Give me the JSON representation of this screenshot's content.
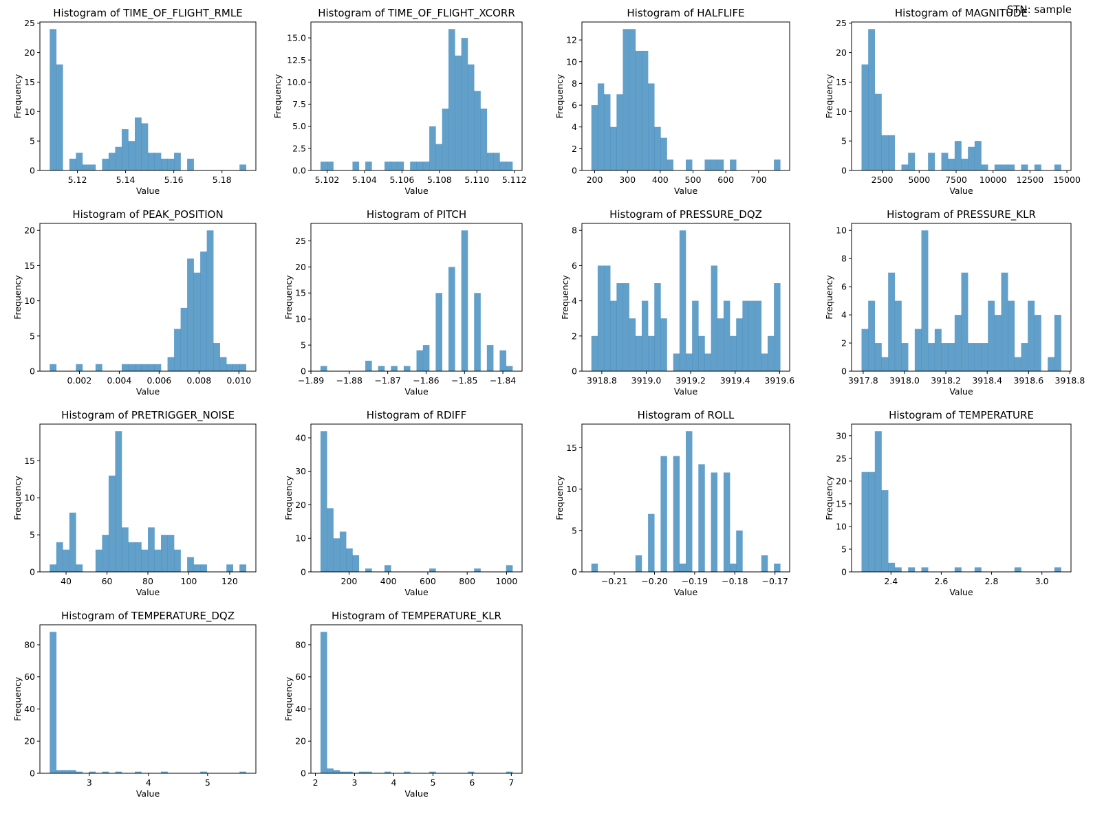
{
  "suptitle": "STN: sample",
  "bar_color": "#1f77b4",
  "bar_alpha": 0.7,
  "chart_data": [
    {
      "type": "bar",
      "title": "Histogram of TIME_OF_FLIGHT_RMLE",
      "xlabel": "Value",
      "ylabel": "Frequency",
      "bins": 30,
      "range": [
        5.1085,
        5.19
      ],
      "values": [
        24,
        18,
        0,
        2,
        3,
        1,
        1,
        0,
        2,
        3,
        4,
        7,
        5,
        9,
        8,
        3,
        3,
        2,
        2,
        3,
        0,
        2,
        0,
        0,
        0,
        0,
        0,
        0,
        0,
        1
      ],
      "xticks": [
        5.12,
        5.14,
        5.16,
        5.18
      ],
      "xtick_labels": [
        "5.12",
        "5.14",
        "5.16",
        "5.18"
      ],
      "yticks": [
        0,
        5,
        10,
        15,
        20,
        25
      ],
      "ytick_labels": [
        "0",
        "5",
        "10",
        "15",
        "20",
        "25"
      ],
      "ylim": [
        0,
        25.2
      ]
    },
    {
      "type": "bar",
      "title": "Histogram of TIME_OF_FLIGHT_XCORR",
      "xlabel": "Value",
      "ylabel": "Frequency",
      "bins": 30,
      "range": [
        5.10165,
        5.1119
      ],
      "values": [
        1,
        1,
        0,
        0,
        0,
        1,
        0,
        1,
        0,
        0,
        1,
        1,
        1,
        0,
        1,
        1,
        1,
        5,
        3,
        7,
        16,
        13,
        15,
        12,
        9,
        7,
        2,
        2,
        1,
        1
      ],
      "xticks": [
        5.102,
        5.104,
        5.106,
        5.108,
        5.11,
        5.112
      ],
      "xtick_labels": [
        "5.102",
        "5.104",
        "5.106",
        "5.108",
        "5.110",
        "5.112"
      ],
      "yticks": [
        0,
        2.5,
        5,
        7.5,
        10,
        12.5,
        15
      ],
      "ytick_labels": [
        "0.0",
        "2.5",
        "5.0",
        "7.5",
        "10.0",
        "12.5",
        "15.0"
      ],
      "ylim": [
        0,
        16.8
      ]
    },
    {
      "type": "bar",
      "title": "Histogram of HALFLIFE",
      "xlabel": "Value",
      "ylabel": "Frequency",
      "bins": 30,
      "range": [
        190,
        766
      ],
      "values": [
        6,
        8,
        7,
        4,
        7,
        13,
        13,
        11,
        11,
        8,
        4,
        3,
        1,
        0,
        0,
        1,
        0,
        0,
        1,
        1,
        1,
        0,
        1,
        0,
        0,
        0,
        0,
        0,
        0,
        1
      ],
      "xticks": [
        200,
        300,
        400,
        500,
        600,
        700
      ],
      "xtick_labels": [
        "200",
        "300",
        "400",
        "500",
        "600",
        "700"
      ],
      "yticks": [
        0,
        2,
        4,
        6,
        8,
        10,
        12
      ],
      "ytick_labels": [
        "0",
        "2",
        "4",
        "6",
        "8",
        "10",
        "12"
      ],
      "ylim": [
        0,
        13.65
      ]
    },
    {
      "type": "bar",
      "title": "Histogram of MAGNITUDE",
      "xlabel": "Value",
      "ylabel": "Frequency",
      "bins": 30,
      "range": [
        1100,
        14600
      ],
      "values": [
        18,
        24,
        13,
        6,
        6,
        0,
        1,
        3,
        0,
        0,
        3,
        0,
        3,
        2,
        5,
        2,
        4,
        5,
        1,
        0,
        1,
        1,
        1,
        0,
        1,
        0,
        1,
        0,
        0,
        1
      ],
      "xticks": [
        2500,
        5000,
        7500,
        10000,
        12500,
        15000
      ],
      "xtick_labels": [
        "2500",
        "5000",
        "7500",
        "10000",
        "12500",
        "15000"
      ],
      "yticks": [
        0,
        5,
        10,
        15,
        20,
        25
      ],
      "ytick_labels": [
        "0",
        "5",
        "10",
        "15",
        "20",
        "25"
      ],
      "ylim": [
        0,
        25.2
      ]
    },
    {
      "type": "bar",
      "title": "Histogram of PEAK_POSITION",
      "xlabel": "Value",
      "ylabel": "Frequency",
      "bins": 30,
      "range": [
        0.00051,
        0.01036
      ],
      "values": [
        1,
        0,
        0,
        0,
        1,
        0,
        0,
        1,
        0,
        0,
        0,
        1,
        1,
        1,
        1,
        1,
        1,
        0,
        2,
        6,
        9,
        16,
        14,
        17,
        20,
        4,
        2,
        1,
        1,
        1
      ],
      "xticks": [
        0.002,
        0.004,
        0.006,
        0.008,
        0.01
      ],
      "xtick_labels": [
        "0.002",
        "0.004",
        "0.006",
        "0.008",
        "0.010"
      ],
      "yticks": [
        0,
        5,
        10,
        15,
        20
      ],
      "ytick_labels": [
        "0",
        "5",
        "10",
        "15",
        "20"
      ],
      "ylim": [
        0,
        21
      ]
    },
    {
      "type": "bar",
      "title": "Histogram of PITCH",
      "xlabel": "Value",
      "ylabel": "Frequency",
      "bins": 30,
      "range": [
        -1.8875,
        -1.8375
      ],
      "values": [
        1,
        0,
        0,
        0,
        0,
        0,
        0,
        2,
        0,
        1,
        0,
        1,
        0,
        1,
        0,
        4,
        5,
        0,
        15,
        0,
        20,
        0,
        27,
        0,
        15,
        0,
        5,
        0,
        4,
        1
      ],
      "xticks": [
        -1.89,
        -1.88,
        -1.87,
        -1.86,
        -1.85,
        -1.84
      ],
      "xtick_labels": [
        "−1.89",
        "−1.88",
        "−1.87",
        "−1.86",
        "−1.85",
        "−1.84"
      ],
      "yticks": [
        0,
        5,
        10,
        15,
        20,
        25
      ],
      "ytick_labels": [
        "0",
        "5",
        "10",
        "15",
        "20",
        "25"
      ],
      "ylim": [
        0,
        28.35
      ]
    },
    {
      "type": "bar",
      "title": "Histogram of PRESSURE_DQZ",
      "xlabel": "Value",
      "ylabel": "Frequency",
      "bins": 30,
      "range": [
        3918.753,
        3919.603
      ],
      "values": [
        2,
        6,
        6,
        4,
        5,
        5,
        3,
        2,
        4,
        2,
        5,
        3,
        0,
        1,
        8,
        1,
        4,
        2,
        1,
        6,
        3,
        4,
        2,
        3,
        4,
        4,
        4,
        1,
        2,
        5
      ],
      "xticks": [
        3918.8,
        3919.0,
        3919.2,
        3919.4,
        3919.6
      ],
      "xtick_labels": [
        "3918.8",
        "3919.0",
        "3919.2",
        "3919.4",
        "3919.6"
      ],
      "yticks": [
        0,
        2,
        4,
        6,
        8
      ],
      "ytick_labels": [
        "0",
        "2",
        "4",
        "6",
        "8"
      ],
      "ylim": [
        0,
        8.4
      ]
    },
    {
      "type": "bar",
      "title": "Histogram of PRESSURE_KLR",
      "xlabel": "Value",
      "ylabel": "Frequency",
      "bins": 30,
      "range": [
        3917.792,
        3918.757
      ],
      "values": [
        3,
        5,
        2,
        1,
        7,
        5,
        2,
        0,
        3,
        10,
        2,
        3,
        2,
        2,
        4,
        7,
        2,
        2,
        2,
        5,
        4,
        7,
        5,
        1,
        2,
        5,
        4,
        0,
        1,
        4
      ],
      "xticks": [
        3917.8,
        3918.0,
        3918.2,
        3918.4,
        3918.6,
        3918.8
      ],
      "xtick_labels": [
        "3917.8",
        "3918.0",
        "3918.2",
        "3918.4",
        "3918.6",
        "3918.8"
      ],
      "yticks": [
        0,
        2,
        4,
        6,
        8,
        10
      ],
      "ytick_labels": [
        "0",
        "2",
        "4",
        "6",
        "8",
        "10"
      ],
      "ylim": [
        0,
        10.5
      ]
    },
    {
      "type": "bar",
      "title": "Histogram of PRETRIGGER_NOISE",
      "xlabel": "Value",
      "ylabel": "Frequency",
      "bins": 30,
      "range": [
        32,
        128
      ],
      "values": [
        1,
        4,
        3,
        8,
        1,
        0,
        0,
        3,
        5,
        13,
        19,
        6,
        4,
        4,
        3,
        6,
        3,
        5,
        5,
        3,
        0,
        2,
        1,
        1,
        0,
        0,
        0,
        1,
        0,
        1
      ],
      "xticks": [
        40,
        60,
        80,
        100,
        120
      ],
      "xtick_labels": [
        "40",
        "60",
        "80",
        "100",
        "120"
      ],
      "yticks": [
        0,
        5,
        10,
        15
      ],
      "ytick_labels": [
        "0",
        "5",
        "10",
        "15"
      ],
      "ylim": [
        0,
        19.95
      ]
    },
    {
      "type": "bar",
      "title": "Histogram of RDIFF",
      "xlabel": "Value",
      "ylabel": "Frequency",
      "bins": 30,
      "range": [
        55,
        1030
      ],
      "values": [
        42,
        19,
        10,
        12,
        7,
        5,
        0,
        1,
        0,
        0,
        2,
        0,
        0,
        0,
        0,
        0,
        0,
        1,
        0,
        0,
        0,
        0,
        0,
        0,
        1,
        0,
        0,
        0,
        0,
        2
      ],
      "xticks": [
        200,
        400,
        600,
        800,
        1000
      ],
      "xtick_labels": [
        "200",
        "400",
        "600",
        "800",
        "1000"
      ],
      "yticks": [
        0,
        10,
        20,
        30,
        40
      ],
      "ytick_labels": [
        "0",
        "10",
        "20",
        "30",
        "40"
      ],
      "ylim": [
        0,
        44.1
      ]
    },
    {
      "type": "bar",
      "title": "Histogram of ROLL",
      "xlabel": "Value",
      "ylabel": "Frequency",
      "bins": 30,
      "range": [
        -0.2157,
        -0.1687
      ],
      "values": [
        1,
        0,
        0,
        0,
        0,
        0,
        0,
        2,
        0,
        7,
        0,
        14,
        0,
        14,
        1,
        17,
        0,
        13,
        0,
        12,
        0,
        12,
        1,
        5,
        0,
        0,
        0,
        2,
        0,
        1
      ],
      "xticks": [
        -0.21,
        -0.2,
        -0.19,
        -0.18,
        -0.17
      ],
      "xtick_labels": [
        "−0.21",
        "−0.20",
        "−0.19",
        "−0.18",
        "−0.17"
      ],
      "yticks": [
        0,
        5,
        10,
        15
      ],
      "ytick_labels": [
        "0",
        "5",
        "10",
        "15"
      ],
      "ylim": [
        0,
        17.85
      ]
    },
    {
      "type": "bar",
      "title": "Histogram of TEMPERATURE",
      "xlabel": "Value",
      "ylabel": "Frequency",
      "bins": 30,
      "range": [
        2.283,
        3.076
      ],
      "values": [
        22,
        22,
        31,
        18,
        2,
        1,
        0,
        1,
        0,
        1,
        0,
        0,
        0,
        0,
        1,
        0,
        0,
        1,
        0,
        0,
        0,
        0,
        0,
        1,
        0,
        0,
        0,
        0,
        0,
        1
      ],
      "xticks": [
        2.4,
        2.6,
        2.8,
        3.0
      ],
      "xtick_labels": [
        "2.4",
        "2.6",
        "2.8",
        "3.0"
      ],
      "yticks": [
        0,
        5,
        10,
        15,
        20,
        25,
        30
      ],
      "ytick_labels": [
        "0",
        "5",
        "10",
        "15",
        "20",
        "25",
        "30"
      ],
      "ylim": [
        0,
        32.55
      ]
    },
    {
      "type": "bar",
      "title": "Histogram of TEMPERATURE_DQZ",
      "xlabel": "Value",
      "ylabel": "Frequency",
      "bins": 30,
      "range": [
        2.33,
        5.65
      ],
      "values": [
        88,
        2,
        2,
        2,
        1,
        0,
        1,
        0,
        1,
        0,
        1,
        0,
        0,
        1,
        0,
        0,
        0,
        1,
        0,
        0,
        0,
        0,
        0,
        1,
        0,
        0,
        0,
        0,
        0,
        1
      ],
      "xticks": [
        3,
        4,
        5
      ],
      "xtick_labels": [
        "3",
        "4",
        "5"
      ],
      "yticks": [
        0,
        20,
        40,
        60,
        80
      ],
      "ytick_labels": [
        "0",
        "20",
        "40",
        "60",
        "80"
      ],
      "ylim": [
        0,
        92.4
      ]
    },
    {
      "type": "bar",
      "title": "Histogram of TEMPERATURE_KLR",
      "xlabel": "Value",
      "ylabel": "Frequency",
      "bins": 30,
      "range": [
        2.13,
        7.03
      ],
      "values": [
        88,
        3,
        2,
        1,
        1,
        0,
        1,
        1,
        0,
        0,
        1,
        0,
        0,
        1,
        0,
        0,
        0,
        1,
        0,
        0,
        0,
        0,
        0,
        1,
        0,
        0,
        0,
        0,
        0,
        1
      ],
      "xticks": [
        2,
        3,
        4,
        5,
        6,
        7
      ],
      "xtick_labels": [
        "2",
        "3",
        "4",
        "5",
        "6",
        "7"
      ],
      "yticks": [
        0,
        20,
        40,
        60,
        80
      ],
      "ytick_labels": [
        "0",
        "20",
        "40",
        "60",
        "80"
      ],
      "ylim": [
        0,
        92.4
      ]
    }
  ]
}
